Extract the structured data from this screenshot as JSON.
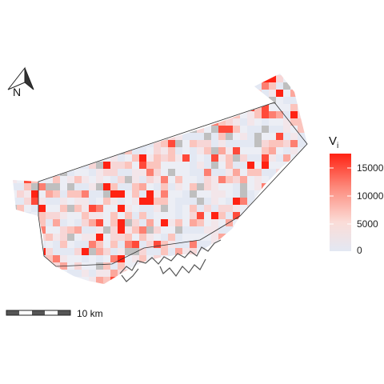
{
  "legend": {
    "title": "V",
    "title_subscript": "i",
    "ticks": [
      {
        "value": 15000,
        "label": "15000"
      },
      {
        "value": 10000,
        "label": "10000"
      },
      {
        "value": 5000,
        "label": "5000"
      },
      {
        "value": 0,
        "label": "0"
      }
    ],
    "min": 0,
    "max": 17500,
    "colors": {
      "low": "#e3e8f3",
      "mid": "#fbdcd7",
      "high": "#ff2213"
    }
  },
  "north_arrow": {
    "label": "N",
    "icon": "north-arrow-icon"
  },
  "scale_bar": {
    "label": "10 km",
    "icon": "scale-bar-icon"
  },
  "colors": {
    "missing": "#bfbfbf",
    "outline": "#333333",
    "shoreline": "#555555"
  }
}
